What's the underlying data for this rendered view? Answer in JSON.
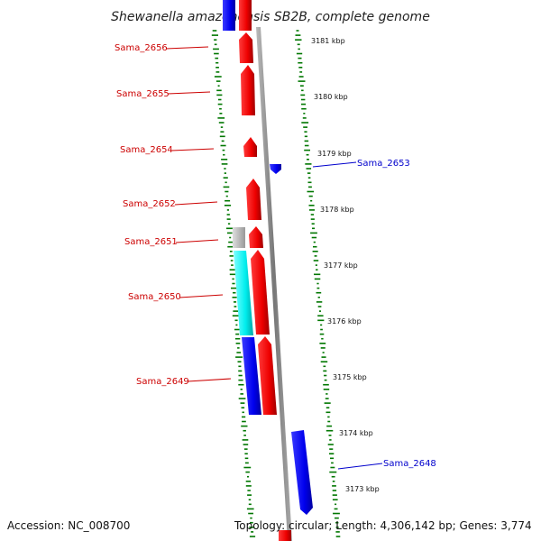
{
  "title": "Shewanella amazonensis SB2B, complete genome",
  "footer": {
    "accession": "Accession: NC_008700",
    "summary": "Topology: circular; Length: 4,306,142 bp; Genes: 3,774"
  },
  "kbp_ticks": [
    "3181 kbp",
    "3180 kbp",
    "3179 kbp",
    "3178 kbp",
    "3177 kbp",
    "3176 kbp",
    "3175 kbp",
    "3174 kbp",
    "3173 kbp"
  ],
  "genes": [
    {
      "id": "Sama_2656",
      "strand": "reverse-side",
      "color": "#ff0000"
    },
    {
      "id": "Sama_2655",
      "strand": "reverse-side",
      "color": "#ff0000"
    },
    {
      "id": "Sama_2654",
      "strand": "reverse-side",
      "color": "#ff0000"
    },
    {
      "id": "Sama_2653",
      "strand": "forward-side",
      "color": "#0000ff"
    },
    {
      "id": "Sama_2652",
      "strand": "reverse-side",
      "color": "#ff0000"
    },
    {
      "id": "Sama_2651",
      "strand": "reverse-side",
      "color": "#ff0000"
    },
    {
      "id": "Sama_2650",
      "strand": "reverse-side",
      "color": "#ff0000"
    },
    {
      "id": "Sama_2649",
      "strand": "reverse-side",
      "color": "#ff0000"
    },
    {
      "id": "Sama_2648",
      "strand": "forward-side",
      "color": "#0000ff"
    }
  ],
  "colors": {
    "forward": "#ff0000",
    "reverse": "#0000ff",
    "cyan": "#00ffff",
    "grey": "#bbbbbb",
    "backbone": "#888888",
    "gc_ticks": "#007700"
  }
}
